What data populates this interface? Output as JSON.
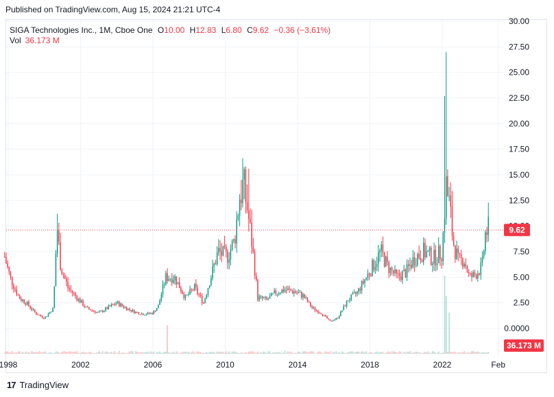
{
  "header": {
    "published": "Published on TradingView.com, Aug 15, 2024 21:21 UTC-4"
  },
  "legend": {
    "symbol": "SIGA Technologies Inc., 1M, Cboe One",
    "open_label": "O",
    "open": "10.00",
    "high_label": "H",
    "high": "12.83",
    "low_label": "L",
    "low": "6.80",
    "close_label": "C",
    "close": "9.62",
    "change": "−0.36 (−3.61%)",
    "vol_label": "Vol",
    "vol": "36.173 M"
  },
  "price_badge": "9.62",
  "volume_badge": "36.173 M",
  "brand": {
    "logo": "17",
    "name": "TradingView"
  },
  "colors": {
    "up": "#089981",
    "down": "#f23645",
    "grid": "#f0f3fa",
    "axis_text": "#131722"
  },
  "chart_data": {
    "type": "candlestick",
    "title": "",
    "y_axis": {
      "min": 0,
      "max": 30,
      "ticks": [
        "30.00",
        "27.50",
        "25.00",
        "22.50",
        "20.00",
        "17.50",
        "15.00",
        "12.50",
        "10.00",
        "7.50",
        "5.00",
        "2.50",
        "0.0000"
      ]
    },
    "x_axis": {
      "ticks": [
        {
          "label": "1998",
          "t": 1998.0
        },
        {
          "label": "2002",
          "t": 2002.0
        },
        {
          "label": "2006",
          "t": 2006.0
        },
        {
          "label": "2010",
          "t": 2010.0
        },
        {
          "label": "2014",
          "t": 2014.0
        },
        {
          "label": "2018",
          "t": 2018.0
        },
        {
          "label": "2022",
          "t": 2022.0
        },
        {
          "label": "Feb",
          "t": 2025.1
        }
      ]
    },
    "last_close": 9.62,
    "keypoints": [
      [
        1997.8,
        7.0
      ],
      [
        1998.1,
        5.0
      ],
      [
        1998.6,
        3.0
      ],
      [
        1999.0,
        2.5
      ],
      [
        1999.5,
        1.5
      ],
      [
        2000.0,
        1.0
      ],
      [
        2000.5,
        2.0
      ],
      [
        2000.7,
        10.0
      ],
      [
        2000.9,
        6.0
      ],
      [
        2001.3,
        4.0
      ],
      [
        2001.8,
        3.0
      ],
      [
        2002.3,
        2.0
      ],
      [
        2003.0,
        1.5
      ],
      [
        2003.5,
        2.0
      ],
      [
        2004.0,
        2.5
      ],
      [
        2004.5,
        2.0
      ],
      [
        2005.0,
        1.6
      ],
      [
        2005.5,
        1.4
      ],
      [
        2006.0,
        1.5
      ],
      [
        2006.3,
        2.2
      ],
      [
        2006.7,
        5.0
      ],
      [
        2007.2,
        5.0
      ],
      [
        2007.8,
        3.0
      ],
      [
        2008.3,
        4.0
      ],
      [
        2008.8,
        2.5
      ],
      [
        2009.2,
        5.0
      ],
      [
        2009.6,
        7.5
      ],
      [
        2010.1,
        7.0
      ],
      [
        2010.5,
        8.5
      ],
      [
        2010.8,
        13.0
      ],
      [
        2011.0,
        14.0
      ],
      [
        2011.2,
        12.0
      ],
      [
        2011.5,
        8.0
      ],
      [
        2011.8,
        3.0
      ],
      [
        2012.3,
        2.8
      ],
      [
        2012.8,
        3.5
      ],
      [
        2013.3,
        3.8
      ],
      [
        2013.8,
        3.6
      ],
      [
        2014.3,
        3.2
      ],
      [
        2014.8,
        2.0
      ],
      [
        2015.3,
        1.5
      ],
      [
        2015.8,
        0.7
      ],
      [
        2016.2,
        1.0
      ],
      [
        2016.8,
        2.8
      ],
      [
        2017.3,
        3.5
      ],
      [
        2017.8,
        5.0
      ],
      [
        2018.3,
        6.5
      ],
      [
        2018.6,
        7.5
      ],
      [
        2019.0,
        6.0
      ],
      [
        2019.5,
        5.0
      ],
      [
        2020.0,
        5.5
      ],
      [
        2020.5,
        7.0
      ],
      [
        2021.0,
        7.5
      ],
      [
        2021.5,
        6.8
      ],
      [
        2022.0,
        7.5
      ],
      [
        2022.2,
        14.0
      ],
      [
        2022.4,
        12.0
      ],
      [
        2022.6,
        8.5
      ],
      [
        2022.9,
        6.5
      ],
      [
        2023.2,
        6.8
      ],
      [
        2023.5,
        5.0
      ],
      [
        2023.8,
        5.2
      ],
      [
        2024.2,
        6.0
      ],
      [
        2024.4,
        9.5
      ],
      [
        2024.6,
        9.62
      ]
    ],
    "spikes": [
      {
        "t": 2000.75,
        "high": 11.2
      },
      {
        "t": 2010.9,
        "high": 14.5
      },
      {
        "t": 2011.3,
        "high": 15.6
      },
      {
        "t": 2022.1,
        "high": 22.7
      },
      {
        "t": 2022.25,
        "high": 27.0
      },
      {
        "t": 2024.65,
        "high": 12.83
      }
    ],
    "volume_spikes": [
      {
        "t": 2006.8,
        "v": 0.35
      },
      {
        "t": 2022.1,
        "v": 0.95
      },
      {
        "t": 2022.25,
        "v": 0.7
      },
      {
        "t": 2022.4,
        "v": 0.5
      }
    ]
  }
}
